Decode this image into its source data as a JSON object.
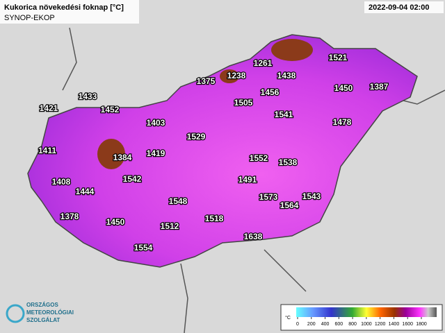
{
  "header": {
    "title": "Kukorica növekedési foknap [°C]",
    "source": "SYNOP-EKOP",
    "date": "2022-09-04 02:00"
  },
  "stations": [
    1521,
    1261,
    1238,
    1438,
    1375,
    1450,
    1387,
    1456,
    1433,
    1505,
    1421,
    1452,
    1541,
    1478,
    1403,
    1529,
    1411,
    1419,
    1384,
    1552,
    1538,
    1408,
    1542,
    1491,
    1444,
    1573,
    1543,
    1564,
    1548,
    1378,
    1450,
    1518,
    1512,
    1638,
    1554
  ],
  "legend": {
    "unit": "°C",
    "ticks": [
      0,
      200,
      400,
      600,
      800,
      1000,
      1200,
      1400,
      1600,
      1800
    ]
  },
  "logo": {
    "line1": "ORSZÁGOS",
    "line2": "METEOROLÓGIAI",
    "line3": "SZOLGÁLAT"
  }
}
